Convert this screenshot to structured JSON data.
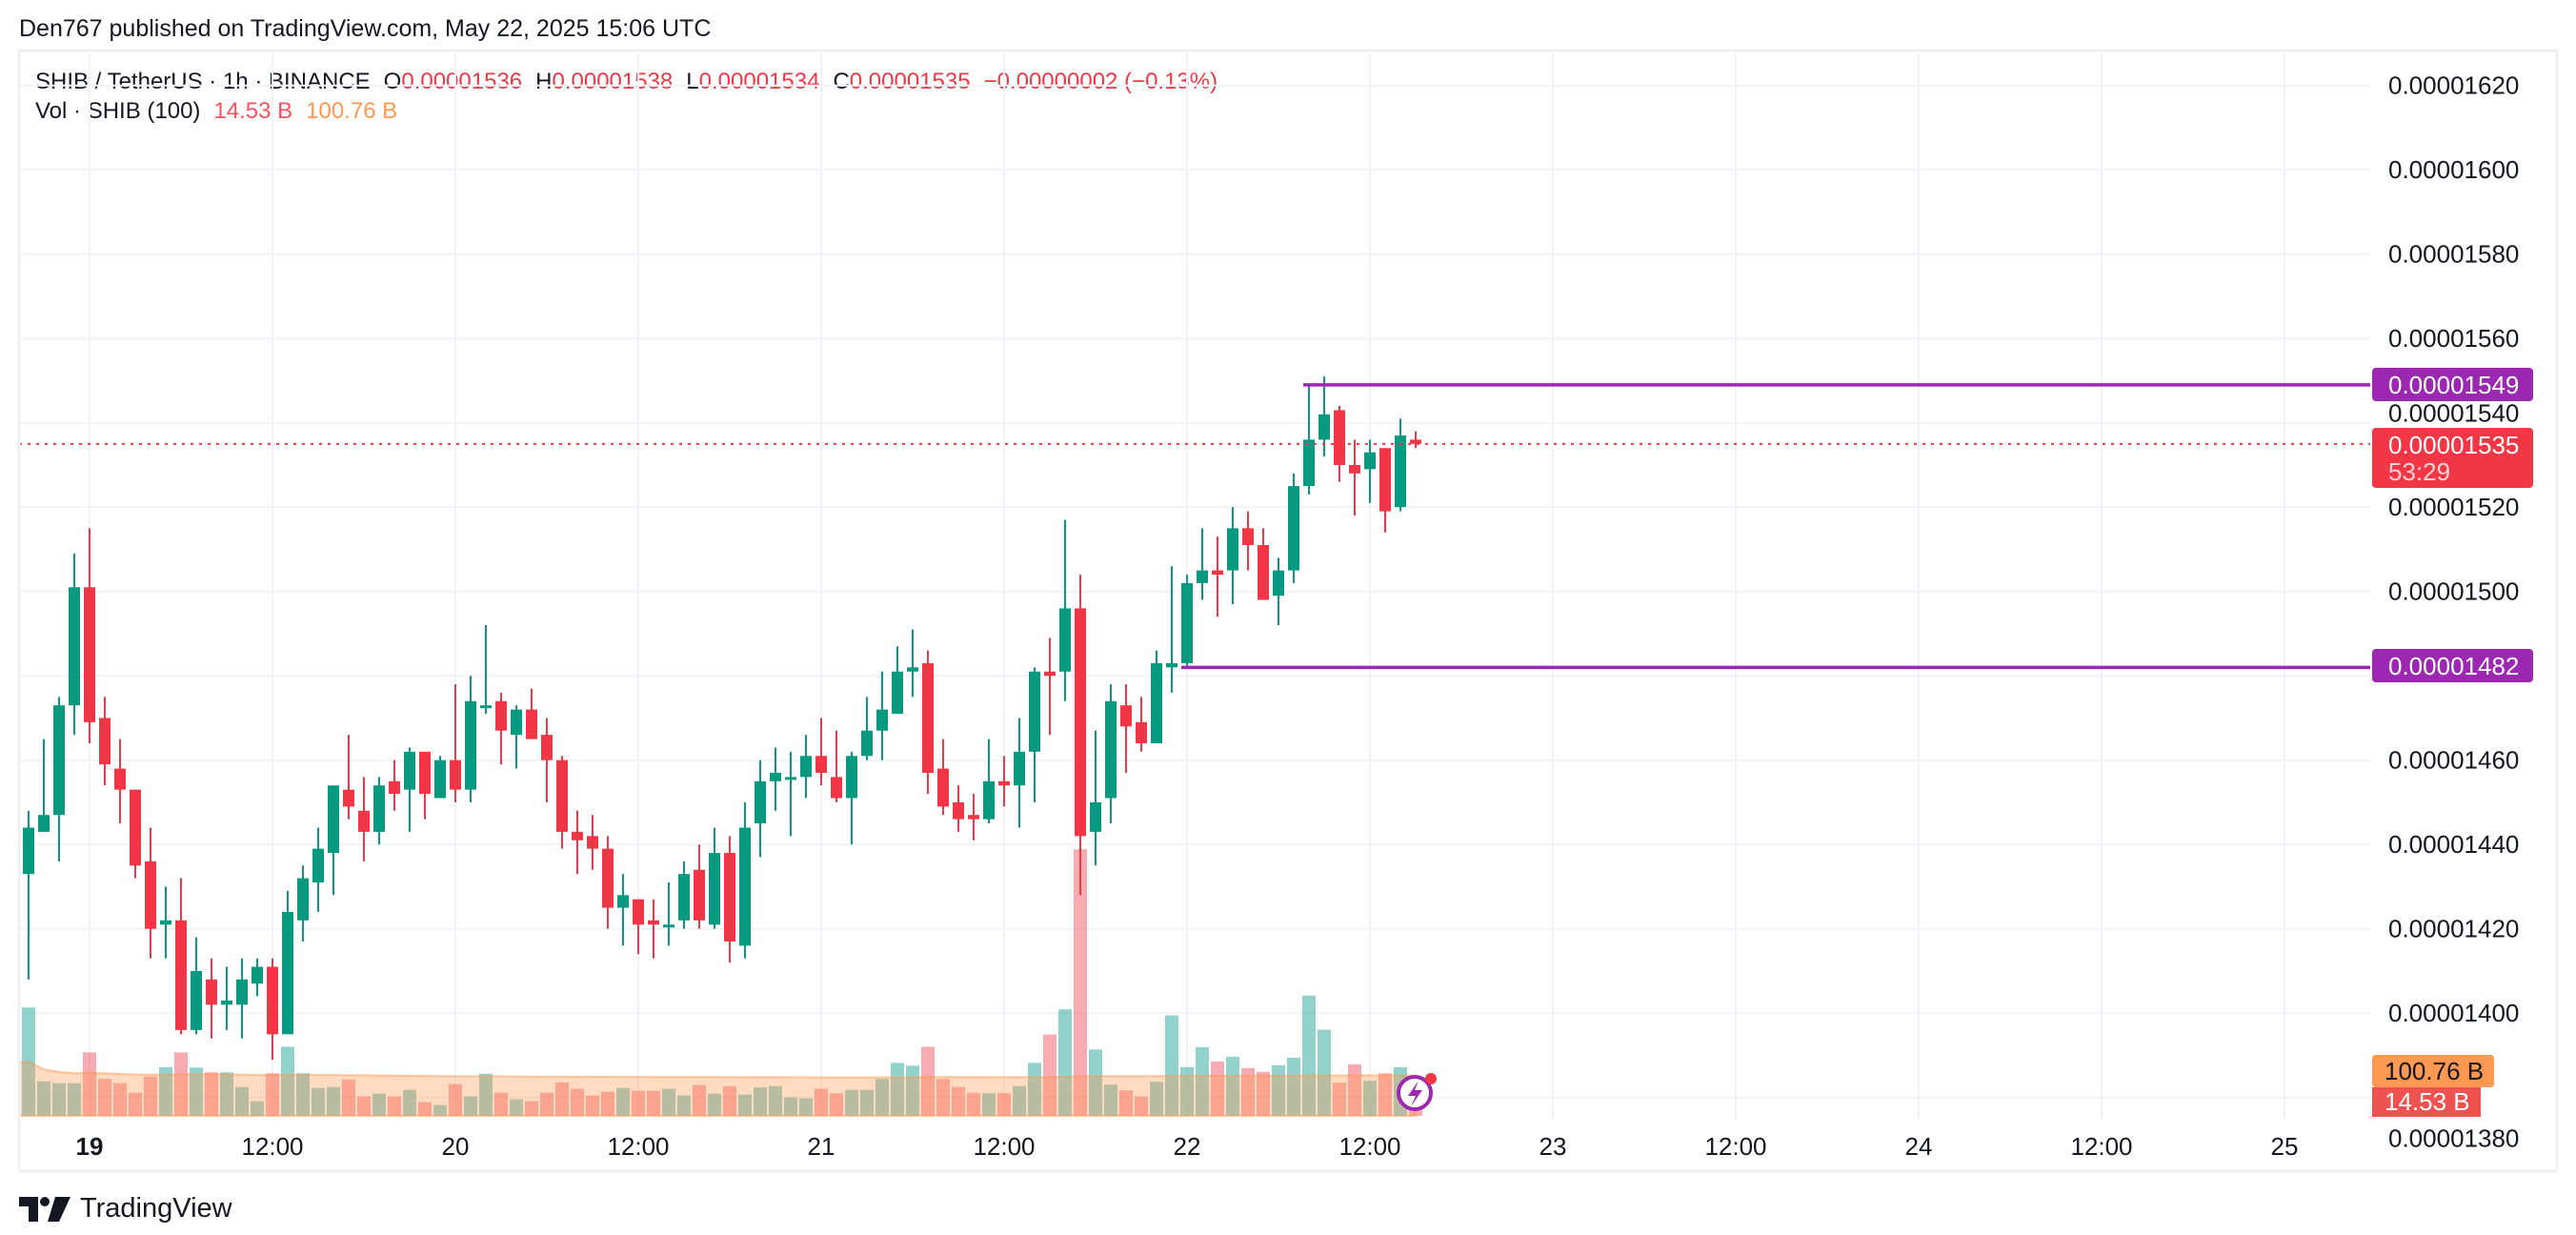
{
  "header": {
    "published": "Den767 published on TradingView.com, May 22, 2025 15:06 UTC"
  },
  "legend": {
    "symbol": "SHIB / TetherUS · 1h · BINANCE",
    "o_label": "O",
    "o": "0.00001536",
    "h_label": "H",
    "h": "0.00001538",
    "l_label": "L",
    "l": "0.00001534",
    "c_label": "C",
    "c": "0.00001535",
    "change": "−0.00000002 (−0.13%)"
  },
  "volume_legend": {
    "label": "Vol · SHIB (100)",
    "value": "14.53 B",
    "ma": "100.76 B"
  },
  "price_axis": {
    "ticks": [
      {
        "value": 1620,
        "label": "0.00001620"
      },
      {
        "value": 1600,
        "label": "0.00001600"
      },
      {
        "value": 1580,
        "label": "0.00001580"
      },
      {
        "value": 1560,
        "label": "0.00001560"
      },
      {
        "value": 1540,
        "label": "0.00001540"
      },
      {
        "value": 1520,
        "label": "0.00001520"
      },
      {
        "value": 1500,
        "label": "0.00001500"
      },
      {
        "value": 1460,
        "label": "0.00001460"
      },
      {
        "value": 1440,
        "label": "0.00001440"
      },
      {
        "value": 1420,
        "label": "0.00001420"
      },
      {
        "value": 1400,
        "label": "0.00001400"
      },
      {
        "value": 1380,
        "label": "0.00001380"
      }
    ]
  },
  "time_axis": {
    "ticks": [
      {
        "label": "19",
        "index": 4,
        "bold": true
      },
      {
        "label": "12:00",
        "index": 16
      },
      {
        "label": "20",
        "index": 28
      },
      {
        "label": "12:00",
        "index": 40
      },
      {
        "label": "21",
        "index": 52
      },
      {
        "label": "12:00",
        "index": 64
      },
      {
        "label": "22",
        "index": 76
      },
      {
        "label": "12:00",
        "index": 88
      },
      {
        "label": "23",
        "index": 100
      },
      {
        "label": "12:00",
        "index": 112
      },
      {
        "label": "24",
        "index": 124
      },
      {
        "label": "12:00",
        "index": 136
      },
      {
        "label": "25",
        "index": 148
      }
    ]
  },
  "tags": {
    "level_high": "0.00001549",
    "level_low": "0.00001482",
    "last_price": "0.00001535",
    "countdown": "53:29",
    "volume_ma": "100.76 B",
    "volume_last": "14.53 B"
  },
  "branding": {
    "logo_text": "TradingView"
  },
  "colors": {
    "up": "#089981",
    "down": "#f23645",
    "vol_up": "#26a69a",
    "vol_down": "#f23645",
    "level": "#9c27b0",
    "ma": "#ff9850",
    "vol_tag_red": "#ef5350"
  },
  "chart_data": {
    "type": "candlestick",
    "title": "SHIB / TetherUS · 1h · BINANCE",
    "price_unit": "1e-8 USDT",
    "ylim": [
      1370,
      1630
    ],
    "candles_ohlc": [
      [
        1433,
        1448,
        1408,
        1444
      ],
      [
        1443,
        1465,
        1443,
        1447
      ],
      [
        1447,
        1475,
        1436,
        1473
      ],
      [
        1473,
        1509,
        1466,
        1501
      ],
      [
        1501,
        1515,
        1464,
        1469
      ],
      [
        1470,
        1475,
        1454,
        1459
      ],
      [
        1458,
        1465,
        1445,
        1453
      ],
      [
        1453,
        1453,
        1432,
        1435
      ],
      [
        1436,
        1444,
        1413,
        1420
      ],
      [
        1421,
        1430,
        1413,
        1422
      ],
      [
        1422,
        1432,
        1395,
        1396
      ],
      [
        1396,
        1418,
        1395,
        1410
      ],
      [
        1408,
        1413,
        1394,
        1402
      ],
      [
        1402,
        1411,
        1396,
        1403
      ],
      [
        1402,
        1413,
        1394,
        1408
      ],
      [
        1407,
        1413,
        1404,
        1411
      ],
      [
        1411,
        1413,
        1389,
        1395
      ],
      [
        1395,
        1429,
        1395,
        1424
      ],
      [
        1422,
        1435,
        1417,
        1432
      ],
      [
        1431,
        1444,
        1424,
        1439
      ],
      [
        1438,
        1454,
        1428,
        1454
      ],
      [
        1453,
        1466,
        1446,
        1449
      ],
      [
        1448,
        1456,
        1436,
        1443
      ],
      [
        1443,
        1456,
        1440,
        1454
      ],
      [
        1455,
        1460,
        1448,
        1452
      ],
      [
        1453,
        1463,
        1443,
        1462
      ],
      [
        1462,
        1462,
        1446,
        1452
      ],
      [
        1451,
        1461,
        1451,
        1460
      ],
      [
        1460,
        1478,
        1450,
        1453
      ],
      [
        1453,
        1480,
        1450,
        1474
      ],
      [
        1473,
        1492,
        1471,
        1473
      ],
      [
        1474,
        1476,
        1459,
        1467
      ],
      [
        1466,
        1473,
        1458,
        1472
      ],
      [
        1472,
        1477,
        1465,
        1465
      ],
      [
        1466,
        1470,
        1450,
        1460
      ],
      [
        1460,
        1461,
        1439,
        1443
      ],
      [
        1443,
        1448,
        1433,
        1441
      ],
      [
        1442,
        1447,
        1434,
        1439
      ],
      [
        1439,
        1442,
        1420,
        1425
      ],
      [
        1425,
        1433,
        1416,
        1428
      ],
      [
        1427,
        1427,
        1414,
        1421
      ],
      [
        1422,
        1427,
        1413,
        1421
      ],
      [
        1421,
        1431,
        1416,
        1421
      ],
      [
        1422,
        1436,
        1420,
        1433
      ],
      [
        1434,
        1440,
        1420,
        1422
      ],
      [
        1421,
        1444,
        1420,
        1438
      ],
      [
        1438,
        1442,
        1412,
        1417
      ],
      [
        1416,
        1450,
        1413,
        1444
      ],
      [
        1445,
        1460,
        1437,
        1455
      ],
      [
        1455,
        1463,
        1448,
        1457
      ],
      [
        1456,
        1462,
        1442,
        1456
      ],
      [
        1456,
        1466,
        1451,
        1461
      ],
      [
        1461,
        1470,
        1454,
        1457
      ],
      [
        1456,
        1467,
        1450,
        1451
      ],
      [
        1451,
        1462,
        1440,
        1461
      ],
      [
        1461,
        1475,
        1460,
        1467
      ],
      [
        1467,
        1481,
        1460,
        1472
      ],
      [
        1471,
        1487,
        1471,
        1481
      ],
      [
        1481,
        1491,
        1475,
        1482
      ],
      [
        1483,
        1486,
        1452,
        1457
      ],
      [
        1458,
        1465,
        1447,
        1449
      ],
      [
        1450,
        1454,
        1443,
        1446
      ],
      [
        1447,
        1452,
        1441,
        1446
      ],
      [
        1446,
        1465,
        1445,
        1455
      ],
      [
        1455,
        1461,
        1449,
        1454
      ],
      [
        1454,
        1470,
        1444,
        1462
      ],
      [
        1462,
        1482,
        1450,
        1481
      ],
      [
        1481,
        1489,
        1466,
        1480
      ],
      [
        1481,
        1517,
        1474,
        1496
      ],
      [
        1496,
        1504,
        1428,
        1442
      ],
      [
        1443,
        1467,
        1435,
        1450
      ],
      [
        1451,
        1478,
        1445,
        1474
      ],
      [
        1473,
        1478,
        1457,
        1468
      ],
      [
        1469,
        1475,
        1462,
        1464
      ],
      [
        1464,
        1486,
        1464,
        1483
      ],
      [
        1482,
        1506,
        1476,
        1483
      ],
      [
        1483,
        1504,
        1482,
        1502
      ],
      [
        1502,
        1515,
        1498,
        1505
      ],
      [
        1505,
        1513,
        1494,
        1504
      ],
      [
        1505,
        1520,
        1497,
        1515
      ],
      [
        1515,
        1519,
        1505,
        1511
      ],
      [
        1511,
        1515,
        1498,
        1498
      ],
      [
        1499,
        1508,
        1492,
        1505
      ],
      [
        1505,
        1528,
        1502,
        1525
      ],
      [
        1525,
        1549,
        1523,
        1536
      ],
      [
        1536,
        1551,
        1532,
        1542
      ],
      [
        1543,
        1544,
        1526,
        1530
      ],
      [
        1530,
        1536,
        1518,
        1528
      ],
      [
        1529,
        1536,
        1521,
        1533
      ],
      [
        1534,
        1534,
        1514,
        1519
      ],
      [
        1520,
        1541,
        1519,
        1537
      ],
      [
        1536,
        1538,
        1534,
        1535
      ]
    ],
    "volumes_billion": [
      229,
      73,
      69,
      69,
      134,
      78,
      69,
      49,
      83,
      103,
      134,
      102,
      92,
      92,
      61,
      31,
      90,
      146,
      90,
      59,
      61,
      77,
      41,
      47,
      41,
      55,
      29,
      23,
      67,
      41,
      89,
      49,
      35,
      31,
      49,
      71,
      57,
      43,
      51,
      59,
      53,
      53,
      57,
      43,
      65,
      47,
      63,
      45,
      60,
      63,
      39,
      37,
      57,
      48,
      55,
      55,
      78,
      112,
      106,
      146,
      78,
      61,
      49,
      48,
      48,
      63,
      112,
      172,
      225,
      563,
      140,
      66,
      54,
      41,
      72,
      212,
      103,
      145,
      115,
      125,
      101,
      93,
      107,
      123,
      254,
      182,
      70,
      109,
      74,
      90,
      103,
      14.53
    ],
    "volume_ma_period": 100,
    "volume_ma_last": 100.76,
    "last_price": 1535,
    "levels": [
      {
        "value": 1549,
        "start_index": 84
      },
      {
        "value": 1482,
        "start_index": 76
      }
    ]
  }
}
